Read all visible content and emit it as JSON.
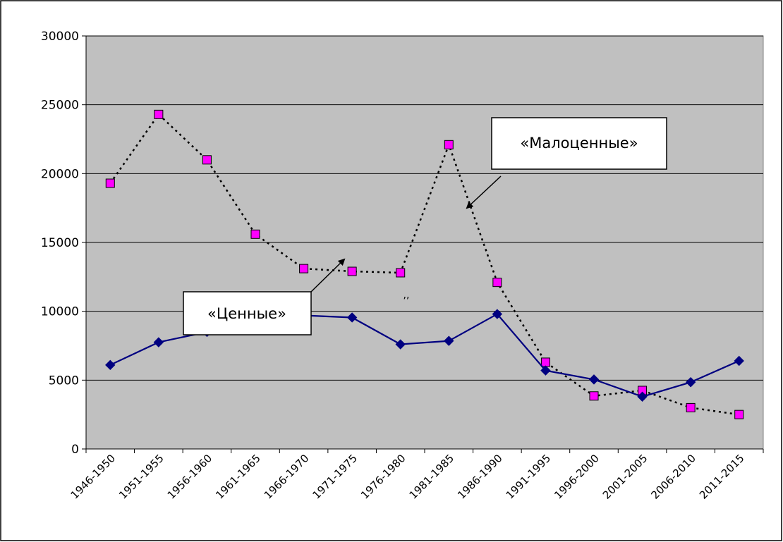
{
  "chart_data": {
    "type": "line",
    "categories": [
      "1946-1950",
      "1951-1955",
      "1956-1960",
      "1961-1965",
      "1966-1970",
      "1971-1975",
      "1976-1980",
      "1981-1985",
      "1986-1990",
      "1991-1995",
      "1996-2000",
      "2001-2005",
      "2006-2010",
      "2011-2015"
    ],
    "ylim": [
      0,
      30000
    ],
    "yticks": [
      0,
      5000,
      10000,
      15000,
      20000,
      25000,
      30000
    ],
    "grid": true,
    "legend": "none",
    "series": [
      {
        "name": "«Малоценные»",
        "style": "dotted",
        "color": "#000000",
        "marker": "square",
        "marker_color": "#ff00ff",
        "values": [
          19300,
          24300,
          21000,
          15600,
          13100,
          12900,
          12800,
          22100,
          12100,
          6300,
          3850,
          4250,
          3000,
          2500
        ]
      },
      {
        "name": "«Ценные»",
        "style": "solid",
        "color": "#000080",
        "marker": "diamond",
        "marker_color": "#000080",
        "values": [
          6100,
          7750,
          8500,
          9600,
          9700,
          9550,
          7600,
          7850,
          9800,
          5700,
          5050,
          3800,
          4850,
          6400
        ]
      }
    ],
    "annotations": [
      {
        "text": "«Малоценные»",
        "target_series": 0
      },
      {
        "text": "«Ценные»",
        "target_series": 1
      },
      {
        "text": ",,"
      }
    ]
  },
  "colors": {
    "plot_bg": "#c0c0c0",
    "grid": "#000000"
  }
}
